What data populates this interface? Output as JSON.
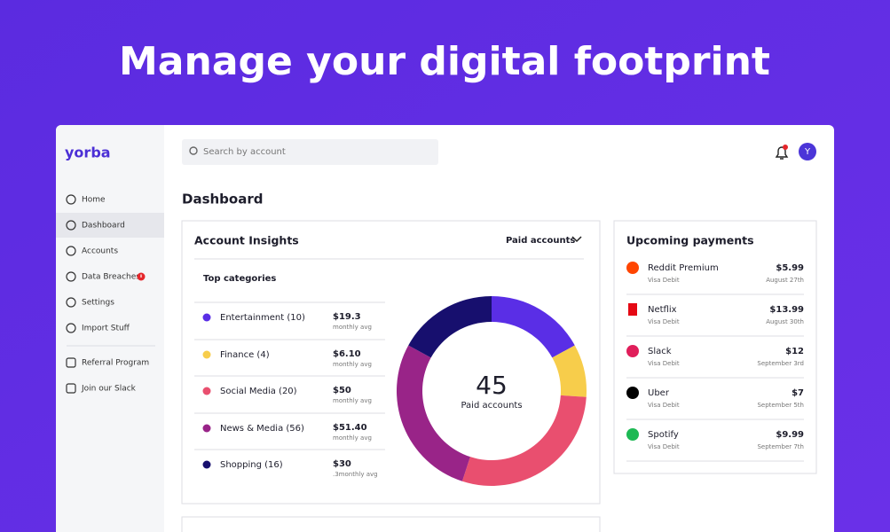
{
  "header": {
    "title": "Manage your digital footprint"
  },
  "sidebar": {
    "logo": "yorba",
    "nav": [
      "Home",
      "Dashboard",
      "Accounts",
      "Data Breaches",
      "Settings",
      "Import Stuff"
    ],
    "extra": [
      "Referral Program",
      "Join our Slack"
    ]
  },
  "search": {
    "placeholder": "Search by account"
  },
  "avatar": "Y",
  "page_title": "Dashboard",
  "insights": {
    "title": "Account Insights",
    "dropdown": "Paid accounts",
    "subtitle": "Top categories",
    "categories": [
      {
        "label": "Entertainment (10)",
        "amount": "$19.3",
        "note": "monthly avg"
      },
      {
        "label": "Finance (4)",
        "amount": "$6.10",
        "note": "monthly avg"
      },
      {
        "label": "Social Media (20)",
        "amount": "$50",
        "note": "monthly avg"
      },
      {
        "label": "News & Media (56)",
        "amount": "$51.40",
        "note": "monthly avg"
      },
      {
        "label": "Shopping (16)",
        "amount": "$30",
        "note": ".3monthly avg"
      }
    ],
    "donut": {
      "total": "45",
      "caption": "Paid accounts",
      "values": [
        17,
        9,
        29,
        28,
        17
      ],
      "colors": [
        "#5a2ee6",
        "#f7cd4b",
        "#e94f6f",
        "#992488",
        "#170f6e"
      ]
    }
  },
  "payments": {
    "title": "Upcoming payments",
    "items": [
      {
        "name": "Reddit Premium",
        "plan": "Visa Debit",
        "amount": "$5.99",
        "date": "August 27th"
      },
      {
        "name": "Netflix",
        "plan": "Visa Debit",
        "amount": "$13.99",
        "date": "August 30th"
      },
      {
        "name": "Slack",
        "plan": "Visa Debit",
        "amount": "$12",
        "date": "September 3rd"
      },
      {
        "name": "Uber",
        "plan": "Visa Debit",
        "amount": "$7",
        "date": "September 5th"
      },
      {
        "name": "Spotify",
        "plan": "Visa Debit",
        "amount": "$9.99",
        "date": "September 7th"
      }
    ]
  }
}
